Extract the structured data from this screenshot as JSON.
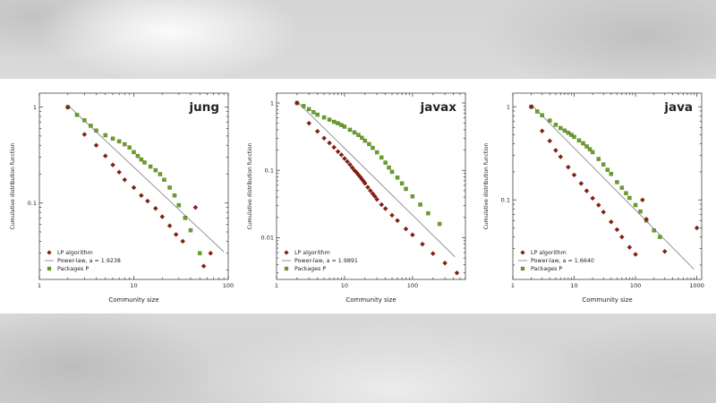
{
  "figure": {
    "xlabel": "Community size",
    "ylabel": "Cumulative distribution function",
    "colors": {
      "lp_marker": "#8e1b10",
      "packages_marker": "#68a122",
      "powerlaw_line": "#8c8c8c",
      "frame": "#444444",
      "tick": "#333333",
      "panel_bg": "#ffffff"
    },
    "legend_labels": {
      "lp": "LP algorithm",
      "powerlaw_prefix": "Power-law, a = ",
      "packages": "Packages P"
    }
  },
  "chart_data": [
    {
      "type": "scatter",
      "title": "jung",
      "xlabel": "Community size",
      "ylabel": "Cumulative distribution function",
      "x_scale": "log",
      "y_scale": "log",
      "x_range": [
        1,
        100
      ],
      "y_range": [
        0.016,
        1.4
      ],
      "x_ticks": [
        1,
        10,
        100
      ],
      "y_ticks": [
        1,
        0.1
      ],
      "powerlaw_a": "1.9238",
      "legend": [
        "LP algorithm",
        "Power-law, a = 1.9238",
        "Packages P"
      ],
      "line": {
        "x": [
          2,
          90
        ],
        "y": [
          1.05,
          0.031
        ]
      },
      "series": [
        {
          "name": "Packages P",
          "marker": "square",
          "color": "#68a122",
          "points": [
            [
              2,
              1.0
            ],
            [
              2.5,
              0.83
            ],
            [
              3,
              0.73
            ],
            [
              3.5,
              0.64
            ],
            [
              4,
              0.57
            ],
            [
              5,
              0.51
            ],
            [
              6,
              0.47
            ],
            [
              7,
              0.44
            ],
            [
              8,
              0.41
            ],
            [
              9,
              0.38
            ],
            [
              10,
              0.34
            ],
            [
              11,
              0.31
            ],
            [
              12,
              0.285
            ],
            [
              13,
              0.265
            ],
            [
              15,
              0.24
            ],
            [
              17,
              0.22
            ],
            [
              19,
              0.2
            ],
            [
              21,
              0.175
            ],
            [
              24,
              0.145
            ],
            [
              27,
              0.12
            ],
            [
              30,
              0.095
            ],
            [
              35,
              0.07
            ],
            [
              40,
              0.052
            ],
            [
              50,
              0.03
            ]
          ]
        },
        {
          "name": "LP algorithm",
          "marker": "diamond",
          "color": "#8e1b10",
          "points": [
            [
              2,
              1.0
            ],
            [
              3,
              0.52
            ],
            [
              4,
              0.4
            ],
            [
              5,
              0.31
            ],
            [
              6,
              0.25
            ],
            [
              7,
              0.21
            ],
            [
              8,
              0.175
            ],
            [
              10,
              0.145
            ],
            [
              12,
              0.12
            ],
            [
              14,
              0.105
            ],
            [
              17,
              0.088
            ],
            [
              20,
              0.072
            ],
            [
              24,
              0.058
            ],
            [
              28,
              0.047
            ],
            [
              33,
              0.04
            ],
            [
              45,
              0.09
            ],
            [
              55,
              0.022
            ],
            [
              65,
              0.03
            ]
          ]
        }
      ]
    },
    {
      "type": "scatter",
      "title": "javax",
      "xlabel": "Community size",
      "ylabel": "Cumulative distribution function",
      "x_scale": "log",
      "y_scale": "log",
      "x_range": [
        1,
        600
      ],
      "y_range": [
        0.0024,
        1.4
      ],
      "x_ticks": [
        1,
        10,
        100
      ],
      "y_ticks": [
        1,
        0.1,
        0.01
      ],
      "powerlaw_a": "1.9891",
      "legend": [
        "LP algorithm",
        "Power-law, a = 1.9891",
        "Packages P"
      ],
      "line": {
        "x": [
          2,
          420
        ],
        "y": [
          1.05,
          0.0052
        ]
      },
      "series": [
        {
          "name": "Packages P",
          "marker": "square",
          "color": "#68a122",
          "points": [
            [
              2,
              1.0
            ],
            [
              2.5,
              0.9
            ],
            [
              3,
              0.81
            ],
            [
              3.5,
              0.73
            ],
            [
              4,
              0.67
            ],
            [
              5,
              0.61
            ],
            [
              6,
              0.565
            ],
            [
              7,
              0.525
            ],
            [
              8,
              0.5
            ],
            [
              9,
              0.47
            ],
            [
              10,
              0.445
            ],
            [
              12,
              0.4
            ],
            [
              14,
              0.365
            ],
            [
              16,
              0.335
            ],
            [
              18,
              0.305
            ],
            [
              20,
              0.275
            ],
            [
              23,
              0.245
            ],
            [
              26,
              0.215
            ],
            [
              30,
              0.185
            ],
            [
              35,
              0.155
            ],
            [
              40,
              0.13
            ],
            [
              45,
              0.11
            ],
            [
              50,
              0.095
            ],
            [
              60,
              0.078
            ],
            [
              70,
              0.064
            ],
            [
              80,
              0.053
            ],
            [
              100,
              0.041
            ],
            [
              130,
              0.031
            ],
            [
              170,
              0.023
            ],
            [
              250,
              0.016
            ]
          ]
        },
        {
          "name": "LP algorithm",
          "marker": "diamond",
          "color": "#8e1b10",
          "points": [
            [
              2,
              1.0
            ],
            [
              3,
              0.5
            ],
            [
              4,
              0.38
            ],
            [
              5,
              0.3
            ],
            [
              6,
              0.255
            ],
            [
              7,
              0.22
            ],
            [
              8,
              0.19
            ],
            [
              9,
              0.17
            ],
            [
              10,
              0.15
            ],
            [
              11,
              0.135
            ],
            [
              12,
              0.122
            ],
            [
              13,
              0.11
            ],
            [
              14,
              0.1
            ],
            [
              15,
              0.093
            ],
            [
              16,
              0.086
            ],
            [
              17,
              0.08
            ],
            [
              18,
              0.074
            ],
            [
              19,
              0.069
            ],
            [
              20,
              0.064
            ],
            [
              22,
              0.056
            ],
            [
              24,
              0.05
            ],
            [
              26,
              0.045
            ],
            [
              28,
              0.041
            ],
            [
              30,
              0.037
            ],
            [
              35,
              0.031
            ],
            [
              40,
              0.027
            ],
            [
              50,
              0.0215
            ],
            [
              60,
              0.018
            ],
            [
              80,
              0.0135
            ],
            [
              100,
              0.011
            ],
            [
              140,
              0.008
            ],
            [
              200,
              0.0058
            ],
            [
              300,
              0.0042
            ],
            [
              450,
              0.003
            ]
          ]
        }
      ]
    },
    {
      "type": "scatter",
      "title": "java",
      "xlabel": "Community size",
      "ylabel": "Cumulative distribution function",
      "x_scale": "log",
      "y_scale": "log",
      "x_range": [
        1,
        1200
      ],
      "y_range": [
        0.014,
        1.4
      ],
      "x_ticks": [
        1,
        10,
        100,
        1000
      ],
      "y_ticks": [
        1,
        0.1
      ],
      "powerlaw_a": "1.6640",
      "legend": [
        "LP algorithm",
        "Power-law, a = 1.6640",
        "Packages P"
      ],
      "line": {
        "x": [
          2,
          900
        ],
        "y": [
          1.05,
          0.018
        ]
      },
      "series": [
        {
          "name": "Packages P",
          "marker": "square",
          "color": "#68a122",
          "points": [
            [
              2,
              1.0
            ],
            [
              2.5,
              0.89
            ],
            [
              3,
              0.81
            ],
            [
              4,
              0.71
            ],
            [
              5,
              0.64
            ],
            [
              6,
              0.59
            ],
            [
              7,
              0.555
            ],
            [
              8,
              0.525
            ],
            [
              9,
              0.5
            ],
            [
              10,
              0.475
            ],
            [
              12,
              0.435
            ],
            [
              14,
              0.405
            ],
            [
              16,
              0.375
            ],
            [
              18,
              0.35
            ],
            [
              20,
              0.325
            ],
            [
              25,
              0.275
            ],
            [
              30,
              0.24
            ],
            [
              35,
              0.21
            ],
            [
              40,
              0.19
            ],
            [
              50,
              0.155
            ],
            [
              60,
              0.135
            ],
            [
              70,
              0.118
            ],
            [
              80,
              0.105
            ],
            [
              100,
              0.088
            ],
            [
              120,
              0.075
            ],
            [
              150,
              0.06
            ],
            [
              200,
              0.047
            ],
            [
              250,
              0.04
            ]
          ]
        },
        {
          "name": "LP algorithm",
          "marker": "diamond",
          "color": "#8e1b10",
          "points": [
            [
              2,
              1.0
            ],
            [
              3,
              0.55
            ],
            [
              4,
              0.43
            ],
            [
              5,
              0.34
            ],
            [
              6,
              0.29
            ],
            [
              8,
              0.225
            ],
            [
              10,
              0.185
            ],
            [
              13,
              0.15
            ],
            [
              16,
              0.125
            ],
            [
              20,
              0.104
            ],
            [
              25,
              0.088
            ],
            [
              30,
              0.074
            ],
            [
              40,
              0.058
            ],
            [
              50,
              0.048
            ],
            [
              60,
              0.04
            ],
            [
              80,
              0.031
            ],
            [
              100,
              0.026
            ],
            [
              130,
              0.1
            ],
            [
              150,
              0.062
            ],
            [
              300,
              0.028
            ],
            [
              1000,
              0.05
            ]
          ]
        }
      ]
    }
  ]
}
